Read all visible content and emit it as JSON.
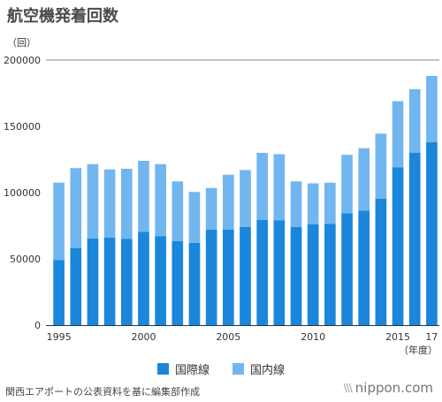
{
  "header": {
    "title": "航空機発着回数",
    "unit": "（回）"
  },
  "chart_data": {
    "type": "bar",
    "stacked": true,
    "categories": [
      "1995",
      "1996",
      "1997",
      "1998",
      "1999",
      "2000",
      "2001",
      "2002",
      "2003",
      "2004",
      "2005",
      "2006",
      "2007",
      "2008",
      "2009",
      "2010",
      "2011",
      "2012",
      "2013",
      "2014",
      "2015",
      "2016",
      "2017"
    ],
    "tick_labels": [
      "1995",
      "",
      "",
      "",
      "",
      "2000",
      "",
      "",
      "",
      "",
      "2005",
      "",
      "",
      "",
      "",
      "2010",
      "",
      "",
      "",
      "",
      "2015",
      "",
      "17"
    ],
    "series": [
      {
        "name": "国際線",
        "color": "#1a86dc",
        "values": [
          49000,
          58000,
          65500,
          66000,
          65000,
          70500,
          67000,
          63500,
          62000,
          72000,
          72000,
          74000,
          79500,
          79000,
          74000,
          76000,
          76500,
          84500,
          86500,
          95500,
          119000,
          130000,
          138000
        ]
      },
      {
        "name": "国内線",
        "color": "#72b6f0",
        "values": [
          58500,
          60500,
          56000,
          51500,
          53000,
          53500,
          54500,
          45000,
          38500,
          31500,
          41500,
          43000,
          50500,
          50000,
          34500,
          31000,
          31000,
          44000,
          47000,
          49000,
          50000,
          48000,
          50000
        ]
      }
    ],
    "ylim": [
      0,
      200000
    ],
    "yticks": [
      0,
      50000,
      100000,
      150000,
      200000
    ],
    "x_unit_label": "（年度）",
    "legend_position": "bottom"
  },
  "footer": {
    "source": "関西エアポートの公表資料を基に編集部作成",
    "brand_mark": "\\\\\\",
    "brand": "nippon.com"
  }
}
